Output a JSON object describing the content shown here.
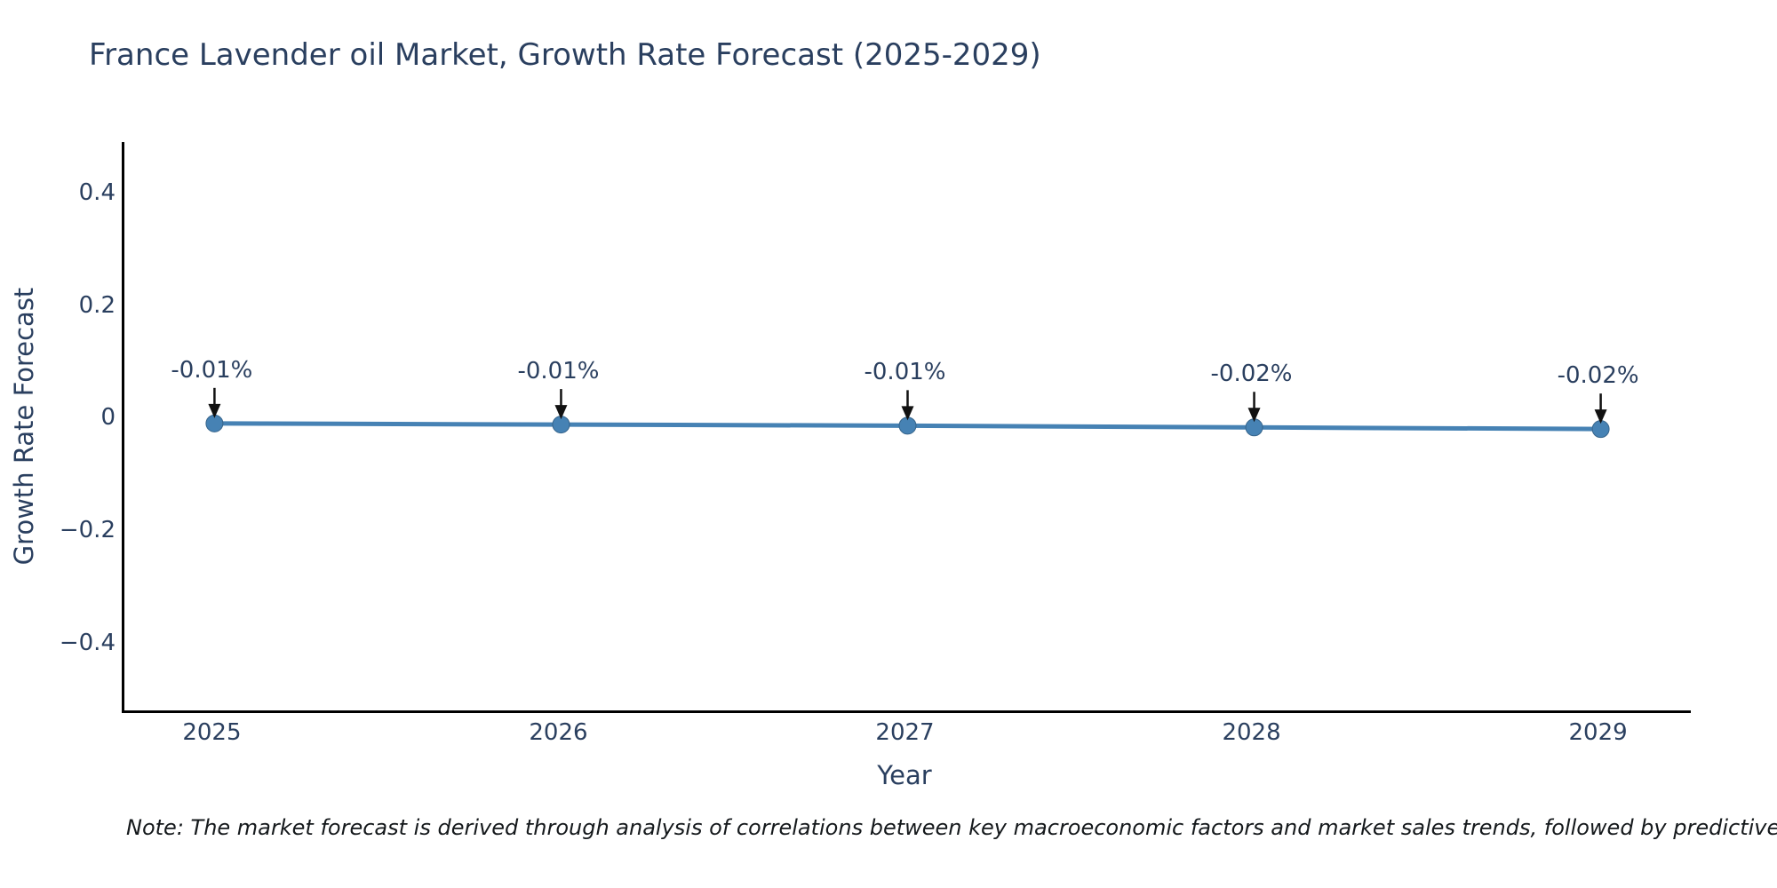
{
  "chart_data": {
    "type": "line",
    "title": "France Lavender oil Market, Growth Rate Forecast (2025-2029)",
    "xlabel": "Year",
    "ylabel": "Growth Rate Forecast",
    "x": [
      2025,
      2026,
      2027,
      2028,
      2029
    ],
    "series": [
      {
        "name": "Growth Rate Forecast",
        "values": [
          -0.01,
          -0.012,
          -0.014,
          -0.017,
          -0.02
        ]
      }
    ],
    "point_labels": [
      "-0.01%",
      "-0.01%",
      "-0.01%",
      "-0.02%",
      "-0.02%"
    ],
    "xlim": [
      2024.74,
      2029.26
    ],
    "ylim": [
      -0.52,
      0.49
    ],
    "xticks": {
      "values": [
        2025,
        2026,
        2027,
        2028,
        2029
      ],
      "labels": [
        "2025",
        "2026",
        "2027",
        "2028",
        "2029"
      ]
    },
    "yticks": {
      "values": [
        0.4,
        0.2,
        0,
        -0.2,
        -0.4
      ],
      "labels": [
        "0.4",
        "0.2",
        "0",
        "−0.2",
        "−0.4"
      ]
    },
    "grid": false,
    "legend_position": "none",
    "colors": {
      "line": "#4682b4",
      "marker": "#4682b4",
      "marker_edge": "#36648b",
      "arrow": "#111111",
      "axis": "#000000",
      "text": "#2a3f5f"
    }
  },
  "note": {
    "text": "Note: The market forecast is derived through analysis of correlations between key macroeconomic factors and market sales trends, followed by predictive modeling to project future sa"
  }
}
